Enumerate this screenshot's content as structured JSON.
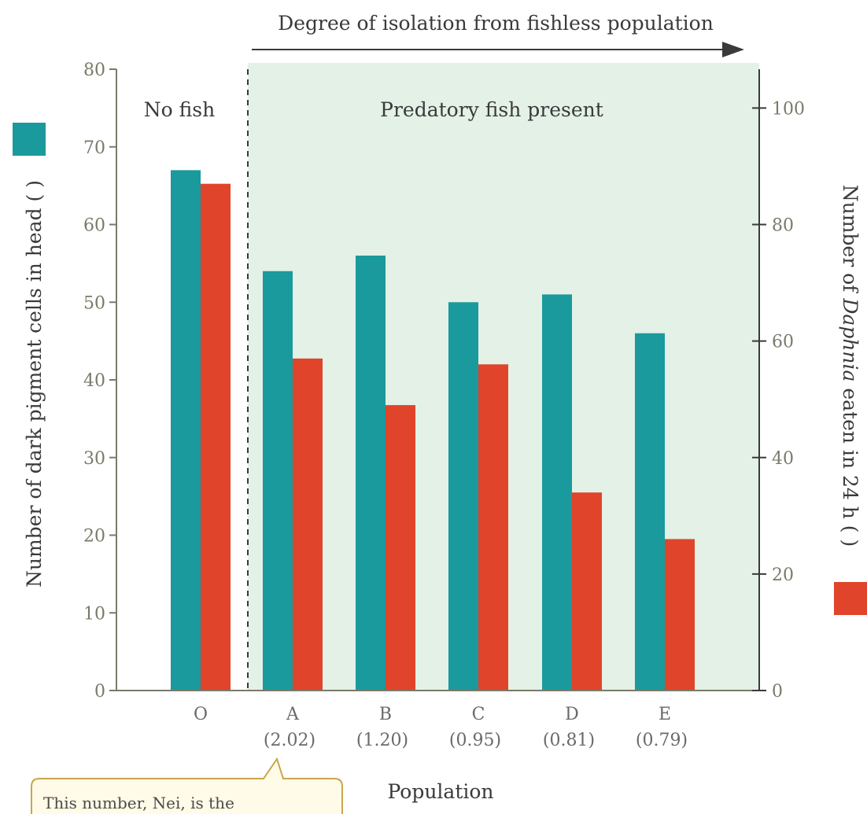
{
  "colors": {
    "teal": "#1a9a9c",
    "red": "#e0442a",
    "shaded_region": "#e3f1e6",
    "axis": "#7a7a6a"
  },
  "callout": {
    "text": "This number, Nei, is the"
  },
  "chart_data": {
    "type": "bar",
    "top_label": "Degree of isolation from fishless population",
    "region_labels": {
      "no_fish": "No fish",
      "fish": "Predatory fish present"
    },
    "xlabel": "Population",
    "ylabel_left": "Number of dark pigment cells in head (",
    "ylabel_left_suffix": ")",
    "ylabel_right_prefix": "Number of ",
    "ylabel_right_italic": "Daphnia",
    "ylabel_right_rest": " eaten in 24 h (",
    "ylabel_right_suffix": ")",
    "categories": [
      "O",
      "A",
      "B",
      "C",
      "D",
      "E"
    ],
    "sub_labels": [
      "",
      "(2.02)",
      "(1.20)",
      "(0.95)",
      "(0.81)",
      "(0.79)"
    ],
    "ylim_left": [
      0,
      80
    ],
    "ylim_right": [
      0,
      106.67
    ],
    "left_ticks": [
      "0",
      "10",
      "20",
      "30",
      "40",
      "50",
      "60",
      "70",
      "80"
    ],
    "right_ticks": [
      "0",
      "20",
      "40",
      "60",
      "80",
      "100"
    ],
    "series": [
      {
        "name": "Number of dark pigment cells in head",
        "axis": "left",
        "color": "#1a9a9c",
        "values": [
          67,
          54,
          56,
          50,
          51,
          46
        ]
      },
      {
        "name": "Number of Daphnia eaten in 24 h",
        "axis": "right",
        "color": "#e0442a",
        "values": [
          87,
          57,
          49,
          56,
          34,
          26
        ]
      }
    ]
  }
}
